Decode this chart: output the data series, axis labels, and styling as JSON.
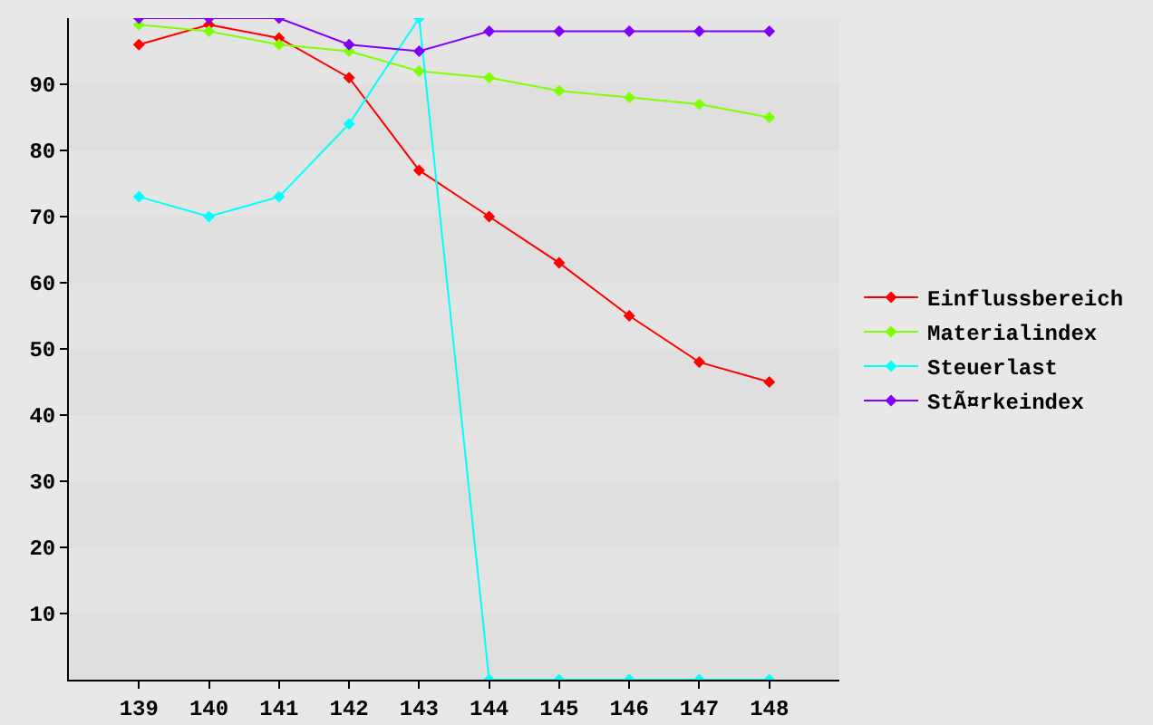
{
  "chart_data": {
    "type": "line",
    "x": [
      139,
      140,
      141,
      142,
      143,
      144,
      145,
      146,
      147,
      148
    ],
    "series": [
      {
        "name": "Einflussbereich",
        "color": "#ff0000",
        "values": [
          96,
          99,
          97,
          91,
          77,
          70,
          63,
          55,
          48,
          45
        ]
      },
      {
        "name": "Materialindex",
        "color": "#80ff00",
        "values": [
          99,
          98,
          96,
          95,
          92,
          91,
          89,
          88,
          87,
          85
        ]
      },
      {
        "name": "Steuerlast",
        "color": "#00ffff",
        "values": [
          73,
          70,
          73,
          84,
          100,
          0,
          0,
          0,
          0,
          0
        ]
      },
      {
        "name": "StÃ¤rkeindex",
        "color": "#8000ff",
        "values": [
          100,
          100,
          100,
          96,
          95,
          98,
          98,
          98,
          98,
          98
        ]
      }
    ],
    "xlim": [
      138,
      149
    ],
    "xticks": [
      139,
      140,
      141,
      142,
      143,
      144,
      145,
      146,
      147,
      148
    ],
    "ylim": [
      0,
      100
    ],
    "yticks": [
      10,
      20,
      30,
      40,
      50,
      60,
      70,
      80,
      90
    ],
    "legend": "right",
    "marker": "diamond",
    "line_style": "solid"
  }
}
